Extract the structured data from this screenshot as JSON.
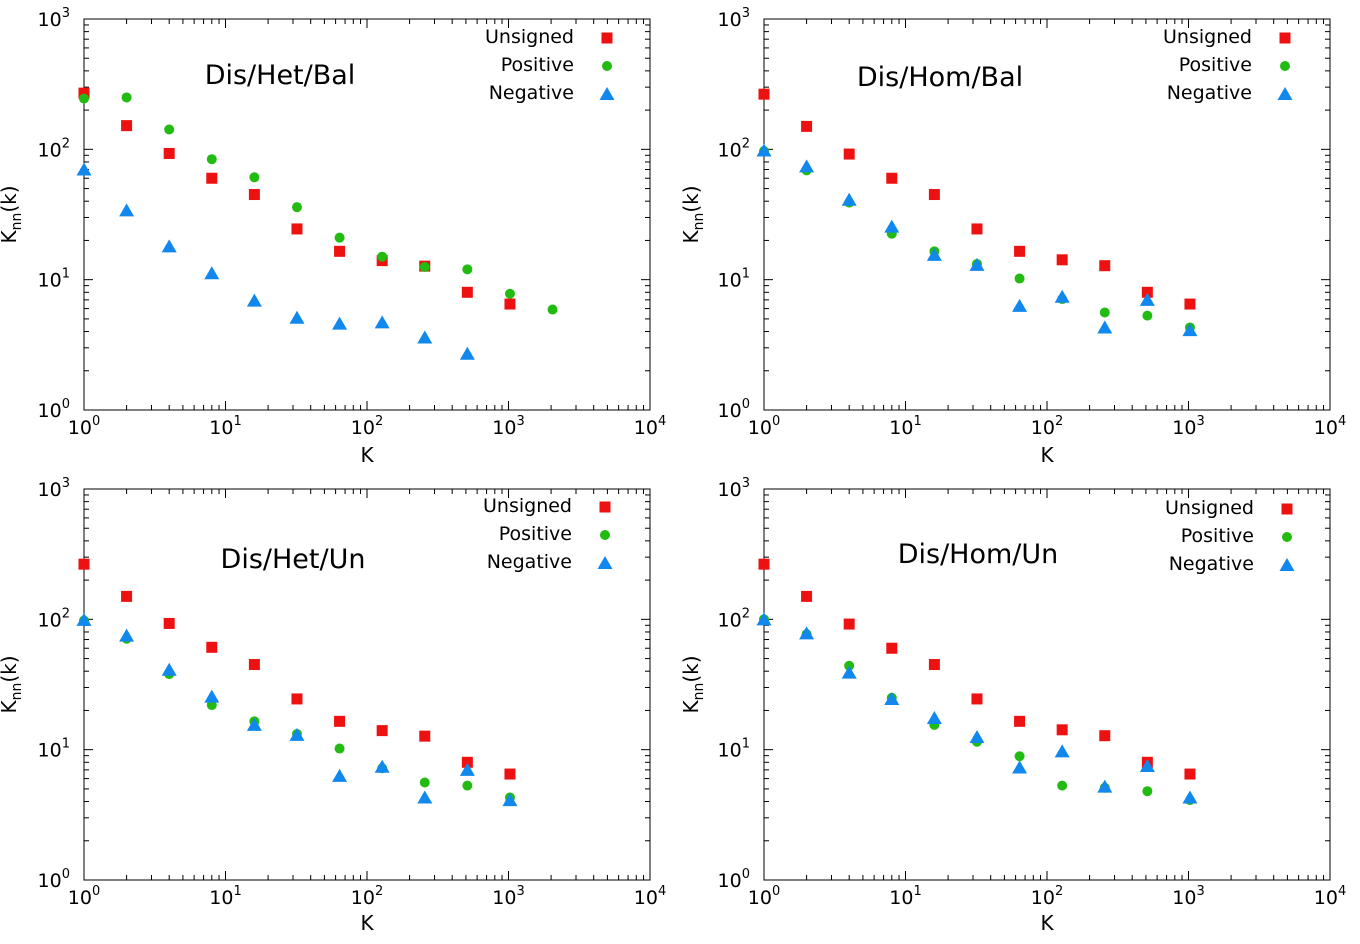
{
  "chart_data": [
    {
      "type": "scatter",
      "title": "Dis/Het/Bal",
      "xlabel": "K",
      "ylabel": "Knn(k)",
      "ylabel_main": "K",
      "ylabel_sub": "nn",
      "ylabel_tail": "(k)",
      "xscale": "log",
      "yscale": "log",
      "xlim": [
        1,
        10000
      ],
      "ylim": [
        1,
        1000
      ],
      "x_ticks": [
        {
          "base": "10",
          "exp": "0"
        },
        {
          "base": "10",
          "exp": "1"
        },
        {
          "base": "10",
          "exp": "2"
        },
        {
          "base": "10",
          "exp": "3"
        },
        {
          "base": "10",
          "exp": "4"
        }
      ],
      "y_ticks": [
        {
          "base": "10",
          "exp": "0"
        },
        {
          "base": "10",
          "exp": "1"
        },
        {
          "base": "10",
          "exp": "2"
        },
        {
          "base": "10",
          "exp": "3"
        }
      ],
      "legend_position": "top-right",
      "series": [
        {
          "name": "Unsigned",
          "marker": "square",
          "color": "#ee1111",
          "x": [
            1,
            2,
            4,
            8,
            16,
            32,
            64,
            128,
            256,
            512,
            1024
          ],
          "y": [
            270,
            152,
            93,
            60,
            45,
            24.5,
            16.5,
            14,
            12.7,
            8,
            6.5
          ]
        },
        {
          "name": "Positive",
          "marker": "circle",
          "color": "#22bb11",
          "x": [
            1,
            2,
            4,
            8,
            16,
            32,
            64,
            128,
            256,
            512,
            1024,
            2048
          ],
          "y": [
            245,
            250,
            142,
            84,
            61,
            36,
            21,
            15,
            12.5,
            12,
            7.8,
            5.9
          ]
        },
        {
          "name": "Negative",
          "marker": "triangle",
          "color": "#1188ee",
          "x": [
            1,
            2,
            4,
            8,
            16,
            32,
            64,
            128,
            256,
            512
          ],
          "y": [
            70,
            34,
            18,
            11.2,
            6.9,
            5.1,
            4.6,
            4.7,
            3.6,
            2.7
          ]
        }
      ]
    },
    {
      "type": "scatter",
      "title": "Dis/Hom/Bal",
      "xlabel": "K",
      "ylabel": "Knn(k)",
      "ylabel_main": "K",
      "ylabel_sub": "nn",
      "ylabel_tail": "(k)",
      "xscale": "log",
      "yscale": "log",
      "xlim": [
        1,
        10000
      ],
      "ylim": [
        1,
        1000
      ],
      "x_ticks": [
        {
          "base": "10",
          "exp": "0"
        },
        {
          "base": "10",
          "exp": "1"
        },
        {
          "base": "10",
          "exp": "2"
        },
        {
          "base": "10",
          "exp": "3"
        },
        {
          "base": "10",
          "exp": "4"
        }
      ],
      "y_ticks": [
        {
          "base": "10",
          "exp": "0"
        },
        {
          "base": "10",
          "exp": "1"
        },
        {
          "base": "10",
          "exp": "2"
        },
        {
          "base": "10",
          "exp": "3"
        }
      ],
      "legend_position": "top-right",
      "series": [
        {
          "name": "Unsigned",
          "marker": "square",
          "color": "#ee1111",
          "x": [
            1,
            2,
            4,
            8,
            16,
            32,
            64,
            128,
            256,
            512,
            1024
          ],
          "y": [
            265,
            150,
            92,
            60,
            45,
            24.5,
            16.5,
            14.2,
            12.8,
            8,
            6.5
          ]
        },
        {
          "name": "Positive",
          "marker": "circle",
          "color": "#22bb11",
          "x": [
            1,
            2,
            4,
            8,
            16,
            32,
            64,
            128,
            256,
            512,
            1024
          ],
          "y": [
            97,
            69,
            39,
            22.5,
            16.5,
            13.2,
            10.2,
            7.1,
            5.6,
            5.3,
            4.3
          ]
        },
        {
          "name": "Negative",
          "marker": "triangle",
          "color": "#1188ee",
          "x": [
            1,
            2,
            4,
            8,
            16,
            32,
            64,
            128,
            256,
            512,
            1024
          ],
          "y": [
            98,
            74,
            41,
            25.5,
            15.5,
            13,
            6.3,
            7.4,
            4.3,
            7,
            4.1
          ]
        }
      ]
    },
    {
      "type": "scatter",
      "title": "Dis/Het/Un",
      "xlabel": "K",
      "ylabel": "Knn(k)",
      "ylabel_main": "K",
      "ylabel_sub": "nn",
      "ylabel_tail": "(k)",
      "xscale": "log",
      "yscale": "log",
      "xlim": [
        1,
        10000
      ],
      "ylim": [
        1,
        1000
      ],
      "x_ticks": [
        {
          "base": "10",
          "exp": "0"
        },
        {
          "base": "10",
          "exp": "1"
        },
        {
          "base": "10",
          "exp": "2"
        },
        {
          "base": "10",
          "exp": "3"
        },
        {
          "base": "10",
          "exp": "4"
        }
      ],
      "y_ticks": [
        {
          "base": "10",
          "exp": "0"
        },
        {
          "base": "10",
          "exp": "1"
        },
        {
          "base": "10",
          "exp": "2"
        },
        {
          "base": "10",
          "exp": "3"
        }
      ],
      "legend_position": "top-right",
      "series": [
        {
          "name": "Unsigned",
          "marker": "square",
          "color": "#ee1111",
          "x": [
            1,
            2,
            4,
            8,
            16,
            32,
            64,
            128,
            256,
            512,
            1024
          ],
          "y": [
            265,
            150,
            93,
            61,
            45,
            24.5,
            16.5,
            14,
            12.7,
            8,
            6.5
          ]
        },
        {
          "name": "Positive",
          "marker": "circle",
          "color": "#22bb11",
          "x": [
            1,
            2,
            4,
            8,
            16,
            32,
            64,
            128,
            256,
            512,
            1024
          ],
          "y": [
            98,
            71,
            38,
            22,
            16.5,
            13.2,
            10.2,
            7.2,
            5.6,
            5.3,
            4.3
          ]
        },
        {
          "name": "Negative",
          "marker": "triangle",
          "color": "#1188ee",
          "x": [
            1,
            2,
            4,
            8,
            16,
            32,
            64,
            128,
            256,
            512,
            1024
          ],
          "y": [
            99,
            75,
            41,
            25.5,
            15.5,
            13,
            6.3,
            7.4,
            4.3,
            7,
            4.1
          ]
        }
      ]
    },
    {
      "type": "scatter",
      "title": "Dis/Hom/Un",
      "xlabel": "K",
      "ylabel": "Knn(k)",
      "ylabel_main": "K",
      "ylabel_sub": "nn",
      "ylabel_tail": "(k)",
      "xscale": "log",
      "yscale": "log",
      "xlim": [
        1,
        10000
      ],
      "ylim": [
        1,
        1000
      ],
      "x_ticks": [
        {
          "base": "10",
          "exp": "0"
        },
        {
          "base": "10",
          "exp": "1"
        },
        {
          "base": "10",
          "exp": "2"
        },
        {
          "base": "10",
          "exp": "3"
        },
        {
          "base": "10",
          "exp": "4"
        }
      ],
      "y_ticks": [
        {
          "base": "10",
          "exp": "0"
        },
        {
          "base": "10",
          "exp": "1"
        },
        {
          "base": "10",
          "exp": "2"
        },
        {
          "base": "10",
          "exp": "3"
        }
      ],
      "legend_position": "top-right",
      "series": [
        {
          "name": "Unsigned",
          "marker": "square",
          "color": "#ee1111",
          "x": [
            1,
            2,
            4,
            8,
            16,
            32,
            64,
            128,
            256,
            512,
            1024
          ],
          "y": [
            265,
            150,
            92,
            60,
            45,
            24.5,
            16.5,
            14.2,
            12.8,
            8,
            6.5
          ]
        },
        {
          "name": "Positive",
          "marker": "circle",
          "color": "#22bb11",
          "x": [
            1,
            2,
            4,
            8,
            16,
            32,
            64,
            128,
            256,
            512,
            1024
          ],
          "y": [
            100,
            77,
            44,
            25,
            15.5,
            11.5,
            8.9,
            5.3,
            5.1,
            4.8,
            4.1
          ]
        },
        {
          "name": "Negative",
          "marker": "triangle",
          "color": "#1188ee",
          "x": [
            1,
            2,
            4,
            8,
            16,
            32,
            64,
            128,
            256,
            512,
            1024
          ],
          "y": [
            100,
            78,
            39,
            24.5,
            17.5,
            12.5,
            7.3,
            9.7,
            5.2,
            7.5,
            4.3
          ]
        }
      ]
    }
  ]
}
